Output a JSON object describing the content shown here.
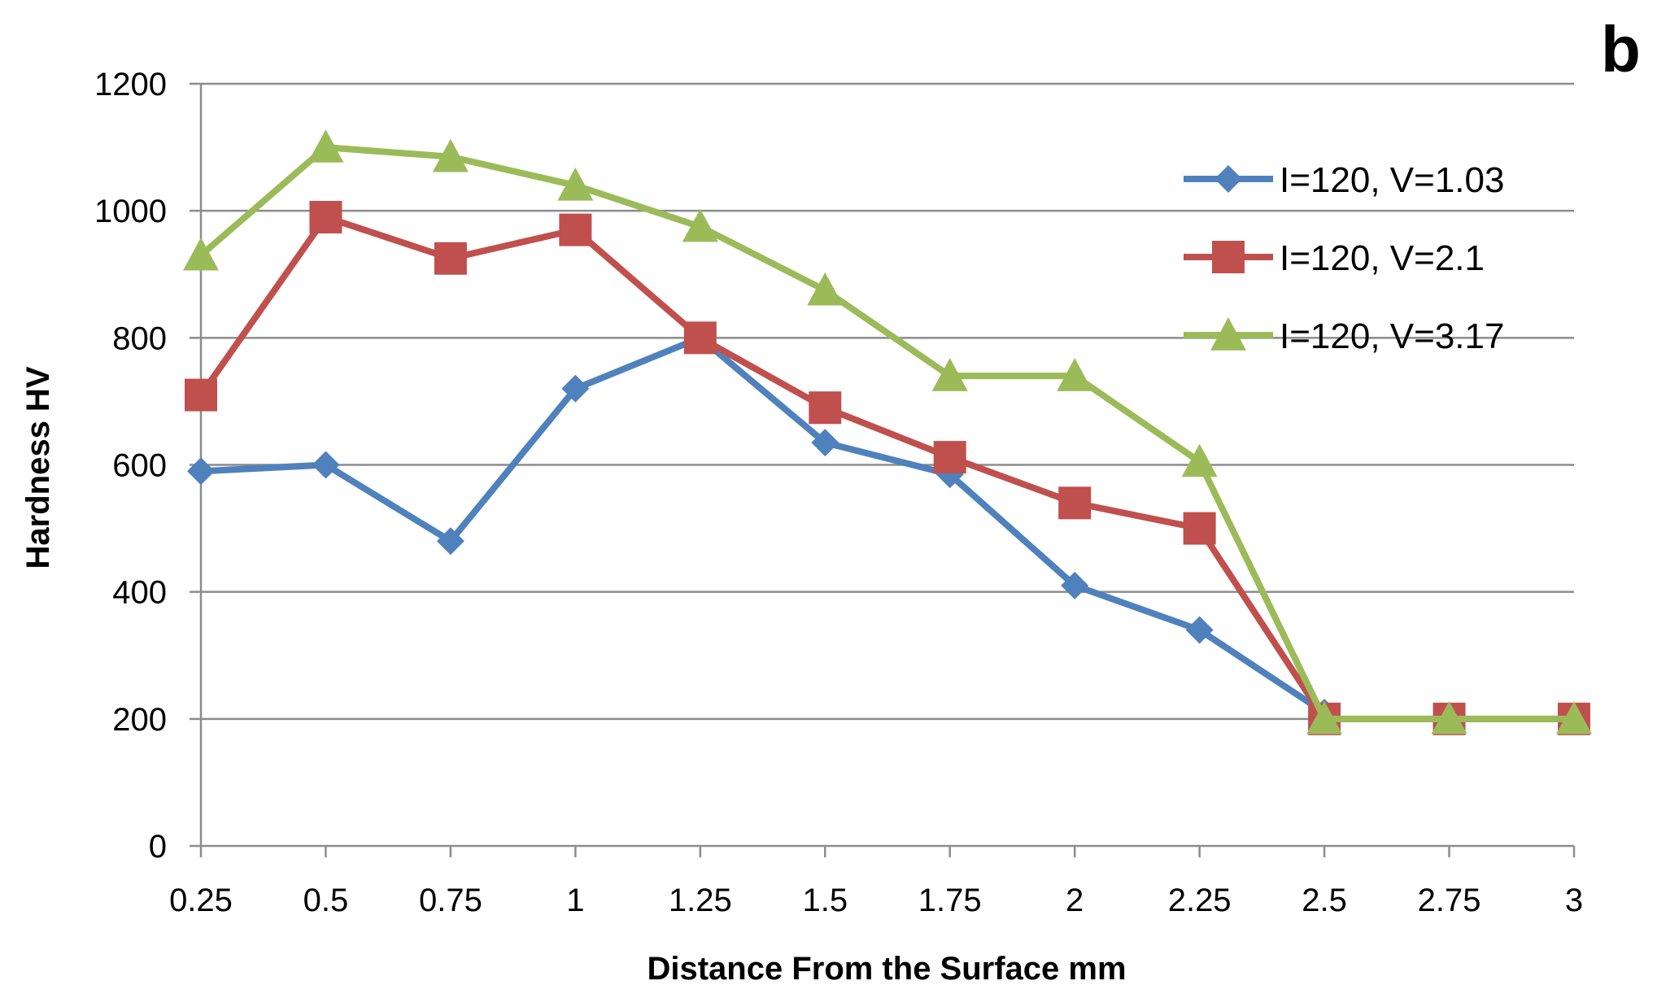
{
  "panel_label": "b",
  "chart_data": {
    "type": "line",
    "title": "",
    "xlabel": "Distance  From the Surface mm",
    "ylabel": "Hardness HV",
    "categories": [
      "0.25",
      "0.5",
      "0.75",
      "1",
      "1.25",
      "1.5",
      "1.75",
      "2",
      "2.25",
      "2.5",
      "2.75",
      "3"
    ],
    "yticks": [
      "0",
      "200",
      "400",
      "600",
      "800",
      "1000",
      "1200"
    ],
    "ylim": [
      0,
      1200
    ],
    "grid": true,
    "legend_position": "top-right",
    "series": [
      {
        "name": "I=120, V=1.03",
        "color": "#4f81bd",
        "marker": "diamond",
        "values": [
          590,
          600,
          480,
          720,
          800,
          635,
          585,
          410,
          340,
          210,
          null,
          null
        ]
      },
      {
        "name": "I=120, V=2.1",
        "color": "#c0504d",
        "marker": "square",
        "values": [
          710,
          990,
          925,
          970,
          800,
          690,
          612,
          540,
          500,
          200,
          200,
          200
        ]
      },
      {
        "name": "I=120, V=3.17",
        "color": "#9bbb59",
        "marker": "triangle",
        "values": [
          930,
          1100,
          1085,
          1040,
          975,
          875,
          740,
          740,
          605,
          200,
          200,
          200
        ]
      }
    ]
  }
}
